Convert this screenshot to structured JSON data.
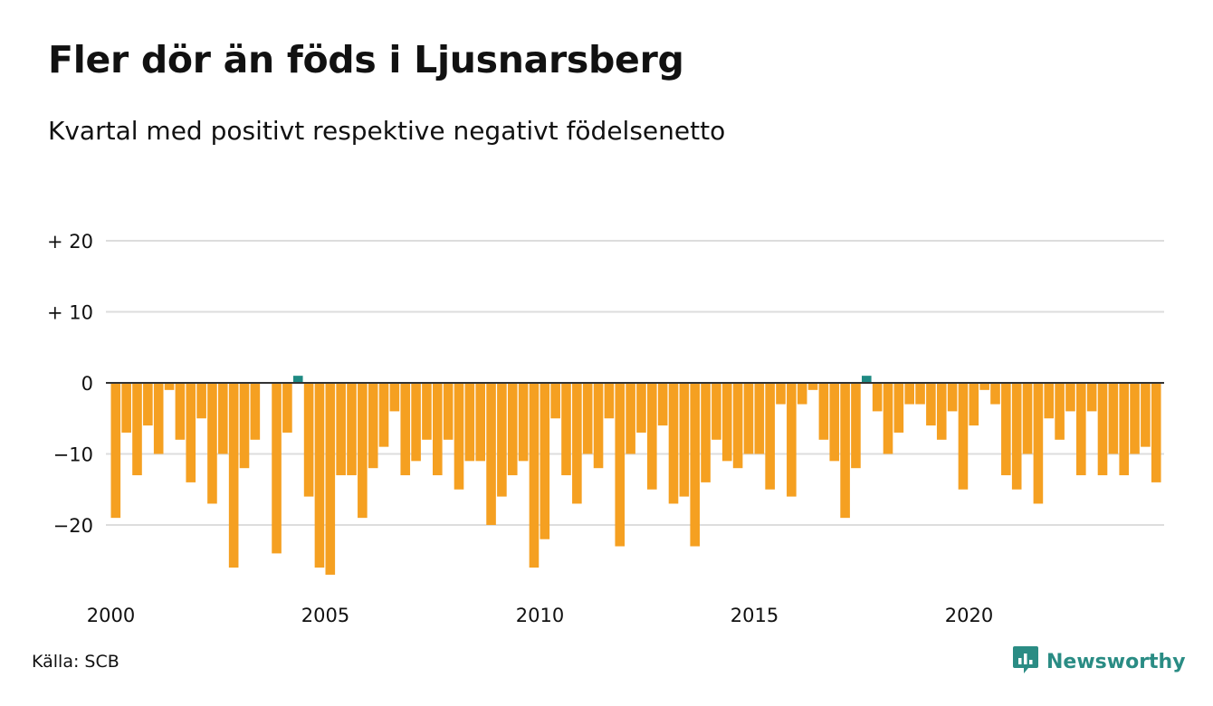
{
  "title": "Fler dör än föds i Ljusnarsberg",
  "subtitle": "Kvartal med positivt respektive negativt födelsenetto",
  "source": "Källa: SCB",
  "brand": {
    "name": "Newsworthy",
    "icon": "newsworthy-logo-icon"
  },
  "colors": {
    "positive": "#1e8a83",
    "negative": "#f5a021",
    "grid": "#dddddd",
    "zero_line": "#333333"
  },
  "chart_data": {
    "type": "bar",
    "title": "Fler dör än föds i Ljusnarsberg",
    "subtitle": "Kvartal med positivt respektive negativt födelsenetto",
    "xlabel": "",
    "ylabel": "",
    "ylim": [
      -27,
      20
    ],
    "grid": true,
    "y_ticks": [
      {
        "value": 20,
        "label": "+ 20"
      },
      {
        "value": 10,
        "label": "+ 10"
      },
      {
        "value": 0,
        "label": "0"
      },
      {
        "value": -10,
        "label": "−10"
      },
      {
        "value": -20,
        "label": "−20"
      }
    ],
    "x_ticks": [
      {
        "year": 2000,
        "label": "2000"
      },
      {
        "year": 2005,
        "label": "2005"
      },
      {
        "year": 2010,
        "label": "2010"
      },
      {
        "year": 2015,
        "label": "2015"
      },
      {
        "year": 2020,
        "label": "2020"
      }
    ],
    "start": "2000 Q1",
    "values": [
      -19,
      -7,
      -13,
      -6,
      -10,
      -1,
      -8,
      -14,
      -5,
      -17,
      -10,
      -26,
      -12,
      -8,
      0,
      -24,
      -7,
      1,
      -16,
      -26,
      -27,
      -13,
      -13,
      -19,
      -12,
      -9,
      -4,
      -13,
      -11,
      -8,
      -13,
      -8,
      -15,
      -11,
      -11,
      -20,
      -16,
      -13,
      -11,
      -26,
      -22,
      -5,
      -13,
      -17,
      -10,
      -12,
      -5,
      -23,
      -10,
      -7,
      -15,
      -6,
      -17,
      -16,
      -23,
      -14,
      -8,
      -11,
      -12,
      -10,
      -10,
      -15,
      -3,
      -16,
      -3,
      -1,
      -8,
      -11,
      -19,
      -12,
      1,
      -4,
      -10,
      -7,
      -3,
      -3,
      -6,
      -8,
      -4,
      -15,
      -6,
      -1,
      -3,
      -13,
      -15,
      -10,
      -17,
      -5,
      -8,
      -4,
      -13,
      -4,
      -13,
      -10,
      -13,
      -10,
      -9,
      -14
    ]
  }
}
